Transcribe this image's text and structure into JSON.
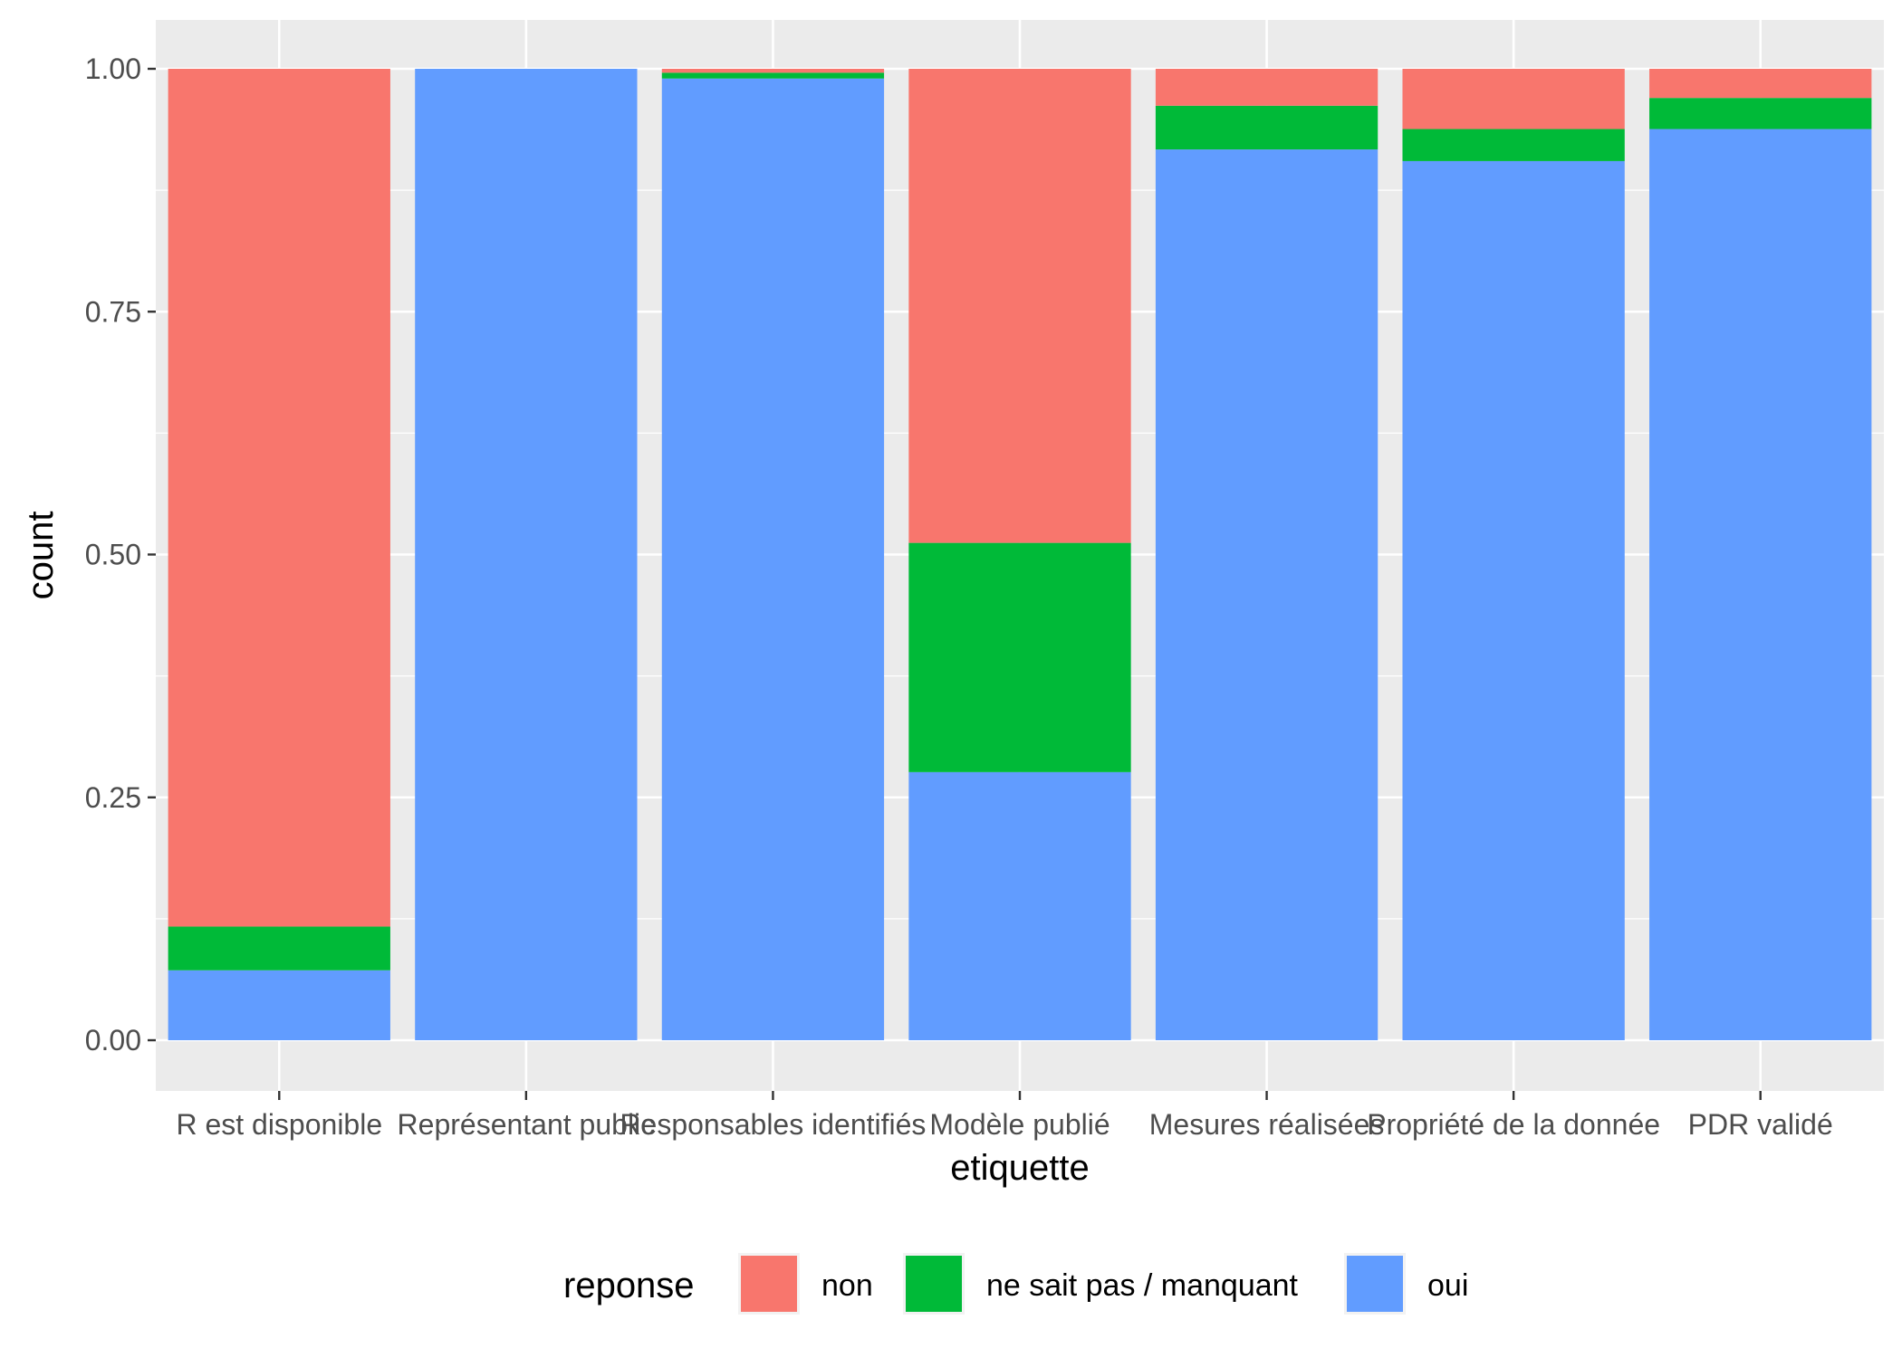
{
  "chart_data": {
    "type": "bar",
    "stacked": true,
    "position": "fill",
    "xlabel": "etiquette",
    "ylabel": "count",
    "ylim": [
      0,
      1.0
    ],
    "yticks": [
      "0.00",
      "0.25",
      "0.50",
      "0.75",
      "1.00"
    ],
    "grid": true,
    "legend_placement": "bottom",
    "legend_title": "reponse",
    "categories": [
      "R est disponible",
      "Représentant public",
      "Responsables identifiés",
      "Modèle publié",
      "Mesures réalisées",
      "Propriété de la donnée",
      "PDR validé"
    ],
    "series": [
      {
        "name": "oui",
        "color": "#619CFF",
        "values": [
          0.072,
          1.0,
          0.99,
          0.276,
          0.917,
          0.905,
          0.938
        ]
      },
      {
        "name": "ne sait pas / manquant",
        "color": "#00BA38",
        "values": [
          0.045,
          0.0,
          0.006,
          0.236,
          0.045,
          0.033,
          0.032
        ]
      },
      {
        "name": "non",
        "color": "#F8766D",
        "values": [
          0.883,
          0.0,
          0.004,
          0.488,
          0.038,
          0.062,
          0.03
        ]
      }
    ],
    "legend_order": [
      "non",
      "ne sait pas / manquant",
      "oui"
    ]
  }
}
